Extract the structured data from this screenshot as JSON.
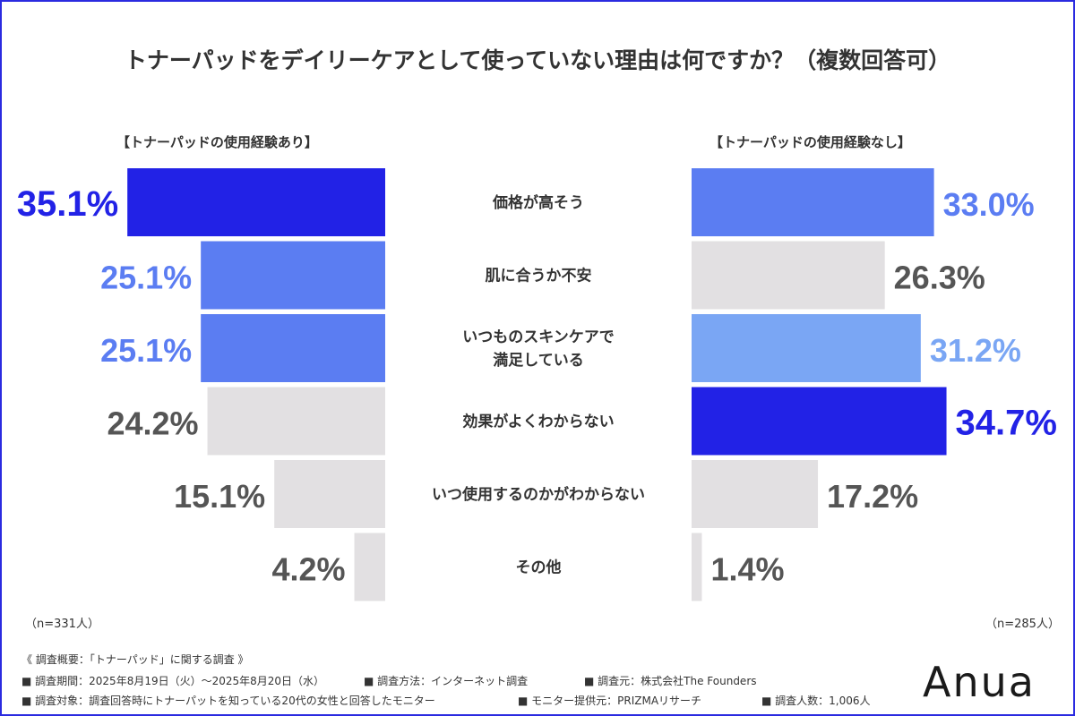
{
  "title": "トナーパッドをデイリーケアとして使っていない理由は何ですか？（複数回答可）",
  "left_panel": {
    "heading": "【トナーパッドの使用経験あり】",
    "n": "（n=331人）"
  },
  "right_panel": {
    "heading": "【トナーパッドの使用経験なし】",
    "n": "（n=285人）"
  },
  "colors": {
    "dark_blue": "#2222e6",
    "mid_blue": "#5b7df2",
    "light_blue": "#7aa6f4",
    "gray": "#e2e0e2",
    "dark_label": "#555555"
  },
  "chart_data": {
    "type": "bar",
    "categories": [
      "価格が高そう",
      "肌に合うか不安",
      "いつものスキンケアで\n満足している",
      "効果がよくわからない",
      "いつ使用するのかがわからない",
      "その他"
    ],
    "series": [
      {
        "name": "【トナーパッドの使用経験あり】",
        "values": [
          35.1,
          25.1,
          25.1,
          24.2,
          15.1,
          4.2
        ],
        "labels": [
          "35.1%",
          "25.1%",
          "25.1%",
          "24.2%",
          "15.1%",
          "4.2%"
        ],
        "bar_colors": [
          "#2222e6",
          "#5b7df2",
          "#5b7df2",
          "#e2e0e2",
          "#e2e0e2",
          "#e2e0e2"
        ],
        "label_colors": [
          "#2222e6",
          "#5b7df2",
          "#5b7df2",
          "#555555",
          "#555555",
          "#555555"
        ]
      },
      {
        "name": "【トナーパッドの使用経験なし】",
        "values": [
          33.0,
          26.3,
          31.2,
          34.7,
          17.2,
          1.4
        ],
        "labels": [
          "33.0%",
          "26.3%",
          "31.2%",
          "34.7%",
          "17.2%",
          "1.4%"
        ],
        "bar_colors": [
          "#5b7df2",
          "#e2e0e2",
          "#7aa6f4",
          "#2222e6",
          "#e2e0e2",
          "#e2e0e2"
        ],
        "label_colors": [
          "#5b7df2",
          "#555555",
          "#7aa6f4",
          "#2222e6",
          "#555555",
          "#555555"
        ]
      }
    ],
    "layout": "butterfly"
  },
  "survey": {
    "heading": "《 調査概要：「トナーパッド」に関する調査 》",
    "period": "■ 調査期間：2025年8月19日（火）〜2025年8月20日（水）",
    "method": "■ 調査方法：インターネット調査",
    "source": "■ 調査元：株式会社The Founders",
    "target": "■ 調査対象：調査回答時にトナーパットを知っている20代の女性と回答したモニター",
    "provider": "■ モニター提供元：PRIZMAリサーチ",
    "count": "■ 調査人数：1,006人"
  },
  "brand": "Anua"
}
